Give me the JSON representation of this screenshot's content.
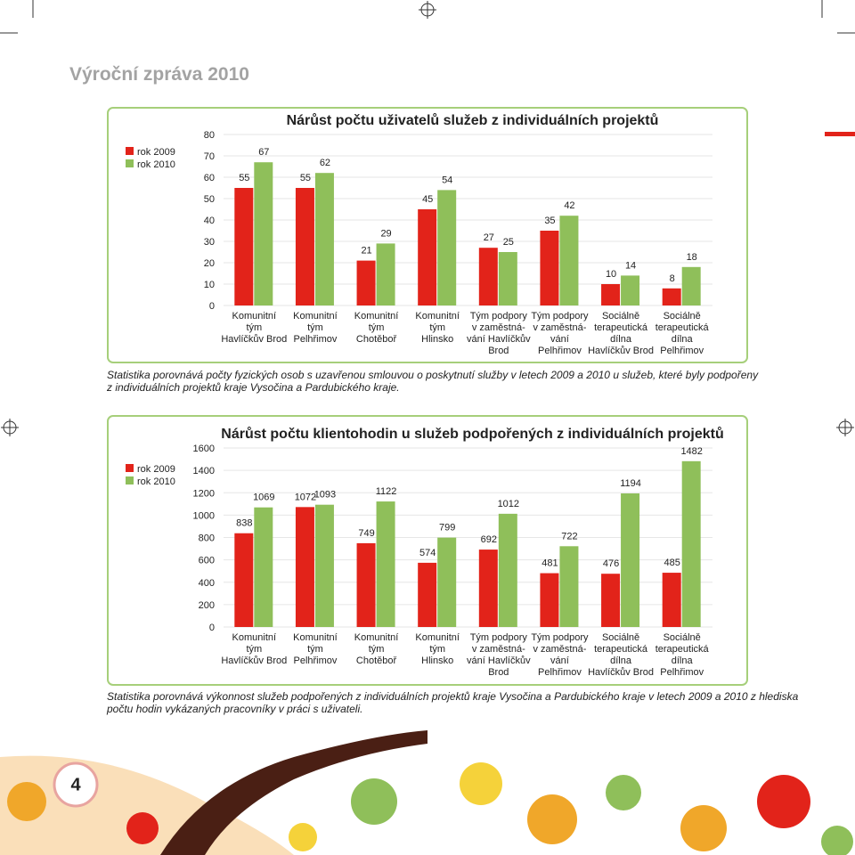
{
  "header": {
    "title": "Výroční zpráva 2010"
  },
  "chart_data": [
    {
      "type": "bar",
      "title": "Nárůst počtu uživatelů služeb z individuálních projektů",
      "categories": [
        "Komunitní\ntým\nHavlíčkův Brod",
        "Komunitní\ntým\nPelhřimov",
        "Komunitní\ntým\nChotěboř",
        "Komunitní\ntým\nHlinsko",
        "Tým podpory\nv zaměstná-\nvání Havlíčkův\nBrod",
        "Tým podpory\nv zaměstná-\nvání\nPelhřimov",
        "Sociálně\nterapeutická\ndílna\nHavlíčkův Brod",
        "Sociálně\nterapeutická\ndílna\nPelhřimov"
      ],
      "series": [
        {
          "name": "rok 2009",
          "color": "#e2231a",
          "values": [
            55,
            55,
            21,
            45,
            27,
            35,
            10,
            8
          ]
        },
        {
          "name": "rok 2010",
          "color": "#8fbf5a",
          "values": [
            67,
            62,
            29,
            54,
            25,
            42,
            14,
            18
          ]
        }
      ],
      "ylim": [
        0,
        80
      ],
      "yticks": [
        0,
        10,
        20,
        30,
        40,
        50,
        60,
        70,
        80
      ],
      "grid": true,
      "legend": "left"
    },
    {
      "type": "bar",
      "title": "Nárůst počtu klientohodin u služeb podpořených z individuálních projektů",
      "categories": [
        "Komunitní\ntým\nHavlíčkův Brod",
        "Komunitní\ntým\nPelhřimov",
        "Komunitní\ntým\nChotěboř",
        "Komunitní\ntým\nHlinsko",
        "Tým podpory\nv zaměstná-\nvání Havlíčkův\nBrod",
        "Tým podpory\nv zaměstná-\nvání\nPelhřimov",
        "Sociálně\nterapeutická\ndílna\nHavlíčkův Brod",
        "Sociálně\nterapeutická\ndílna\nPelhřimov"
      ],
      "series": [
        {
          "name": "rok 2009",
          "color": "#e2231a",
          "values": [
            838,
            1072,
            749,
            574,
            692,
            481,
            476,
            485
          ]
        },
        {
          "name": "rok 2010",
          "color": "#8fbf5a",
          "values": [
            1069,
            1093,
            1122,
            799,
            1012,
            722,
            1194,
            1482
          ]
        }
      ],
      "ylim": [
        0,
        1600
      ],
      "yticks": [
        0,
        200,
        400,
        600,
        800,
        1000,
        1200,
        1400,
        1600
      ],
      "grid": true,
      "legend": "left"
    }
  ],
  "captions": [
    [
      "Statistika porovnává počty fyzických osob s uzavřenou smlouvou o poskytnutí služby v letech 2009 a 2010 u služeb, které byly podpořeny",
      "z individuálních projektů kraje Vysočina a Pardubického kraje."
    ],
    [
      "Statistika porovnává výkonnost služeb podpořených z individuálních projektů  kraje Vysočina a Pardubického kraje v letech 2009 a 2010 z hlediska",
      "počtu hodin vykázaných pracovníky v práci s uživateli."
    ]
  ],
  "page_number": "4"
}
